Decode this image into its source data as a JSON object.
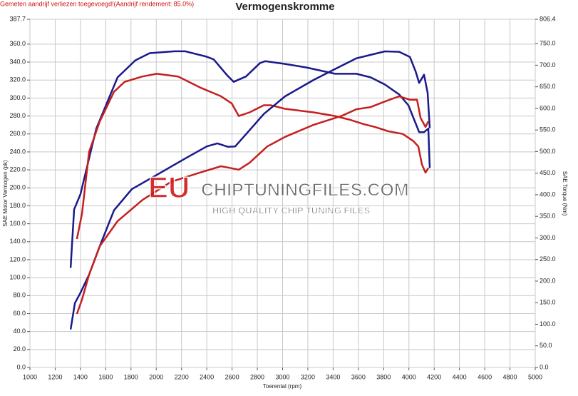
{
  "chart_data": {
    "type": "line",
    "title": "Vermogenskromme",
    "subtitle": "Gemeten aandrijf verliezen toegevoegd!(Aandrijf rendement: 85.0%)",
    "x_label": "Toerental (rpm)",
    "y_label": "SAE Motor Vermogen (pk)",
    "y2_label": "SAE Torque (Nm)",
    "watermark": [
      "EU",
      "CHIPTUNINGFILES.COM",
      "HIGH QUALITY CHIP TUNING FILES"
    ],
    "grid": true,
    "xlim": [
      1000,
      5000
    ],
    "xticks": [
      1000,
      1200,
      1400,
      1600,
      1800,
      2000,
      2200,
      2400,
      2600,
      2800,
      3000,
      3200,
      3400,
      3600,
      3800,
      4000,
      4200,
      4400,
      4600,
      4800,
      5000
    ],
    "ylim": [
      0,
      387.7
    ],
    "yticks": [
      {
        "value": 0,
        "label": "0.0"
      },
      {
        "value": 20,
        "label": "20.0"
      },
      {
        "value": 40,
        "label": "40.0"
      },
      {
        "value": 60,
        "label": "60.0"
      },
      {
        "value": 80,
        "label": "80.0"
      },
      {
        "value": 100,
        "label": "100.0"
      },
      {
        "value": 120,
        "label": "120.0"
      },
      {
        "value": 140,
        "label": "140.0"
      },
      {
        "value": 160,
        "label": "160.0"
      },
      {
        "value": 180,
        "label": "180.0"
      },
      {
        "value": 200,
        "label": "200.0"
      },
      {
        "value": 220,
        "label": "220.0"
      },
      {
        "value": 240,
        "label": "240.0"
      },
      {
        "value": 260,
        "label": "260.0"
      },
      {
        "value": 280,
        "label": "280.0"
      },
      {
        "value": 300,
        "label": "300.0"
      },
      {
        "value": 320,
        "label": "320.0"
      },
      {
        "value": 340,
        "label": "340.0"
      },
      {
        "value": 360,
        "label": "360.0"
      },
      387.7
    ],
    "y2lim": [
      0,
      806.4
    ],
    "y2ticks": [
      {
        "value": 0,
        "label": "0.0"
      },
      {
        "value": 50,
        "label": "50.0"
      },
      {
        "value": 100,
        "label": "100.0"
      },
      {
        "value": 150,
        "label": "150.0"
      },
      {
        "value": 200,
        "label": "200.0"
      },
      {
        "value": 250,
        "label": "250.0"
      },
      {
        "value": 300,
        "label": "300.0"
      },
      {
        "value": 350,
        "label": "350.0"
      },
      {
        "value": 400,
        "label": "400.0"
      },
      {
        "value": 450,
        "label": "450.0"
      },
      {
        "value": 500,
        "label": "500.0"
      },
      {
        "value": 550,
        "label": "550.0"
      },
      {
        "value": 600,
        "label": "600.0"
      },
      {
        "value": 650,
        "label": "650.0"
      },
      {
        "value": 700,
        "label": "700.0"
      },
      {
        "value": 750,
        "label": "750.0"
      },
      806.4
    ],
    "series": [
      {
        "color": "#1a1a8c",
        "axis": "y",
        "x": [
          1322,
          1350,
          1400,
          1525,
          1694,
          1835,
          1948,
          2145,
          2230,
          2400,
          2455,
          2557,
          2613,
          2710,
          2822,
          2862,
          3020,
          3190,
          3415,
          3584,
          3697,
          3810,
          3923,
          3996,
          4047,
          4081,
          4120,
          4154,
          4165
        ],
        "values": [
          111,
          176,
          193,
          266,
          323,
          342,
          350,
          352,
          352,
          346,
          343,
          326,
          318,
          324,
          339,
          341,
          338,
          334,
          327,
          327,
          323,
          315,
          304,
          292,
          274,
          262,
          262,
          266,
          222
        ]
      },
      {
        "color": "#c42020",
        "axis": "y",
        "x": [
          1372,
          1412,
          1468,
          1553,
          1666,
          1750,
          1891,
          2004,
          2173,
          2343,
          2512,
          2597,
          2653,
          2738,
          2851,
          2907,
          3020,
          3246,
          3415,
          3528,
          3641,
          3726,
          3838,
          3951,
          4036,
          4075,
          4103,
          4131,
          4154
        ],
        "values": [
          143,
          171,
          240,
          274,
          307,
          318,
          324,
          327,
          324,
          312,
          302,
          294,
          280,
          284,
          292,
          292,
          288,
          284,
          280,
          276,
          271,
          268,
          263,
          260,
          252,
          246,
          226,
          217,
          222
        ]
      },
      {
        "color": "#1a1a8c",
        "axis": "y2",
        "x": [
          1322,
          1356,
          1400,
          1468,
          1553,
          1666,
          1807,
          2004,
          2230,
          2400,
          2484,
          2568,
          2625,
          2710,
          2851,
          3020,
          3246,
          3415,
          3584,
          3697,
          3810,
          3923,
          4008,
          4053,
          4081,
          4120,
          4148,
          4165
        ],
        "values": [
          88,
          149,
          173,
          215,
          281,
          364,
          413,
          446,
          484,
          512,
          519,
          511,
          512,
          540,
          587,
          628,
          666,
          691,
          716,
          724,
          732,
          731,
          719,
          686,
          659,
          678,
          636,
          554
        ]
      },
      {
        "color": "#c42020",
        "axis": "y2",
        "x": [
          1372,
          1412,
          1468,
          1553,
          1694,
          1891,
          2117,
          2343,
          2512,
          2568,
          2653,
          2738,
          2879,
          3020,
          3246,
          3471,
          3584,
          3697,
          3810,
          3923,
          4008,
          4064,
          4092,
          4131,
          4154
        ],
        "values": [
          124,
          157,
          215,
          281,
          339,
          388,
          430,
          451,
          466,
          463,
          458,
          474,
          512,
          534,
          562,
          583,
          598,
          603,
          616,
          628,
          620,
          620,
          578,
          557,
          570
        ]
      }
    ]
  }
}
